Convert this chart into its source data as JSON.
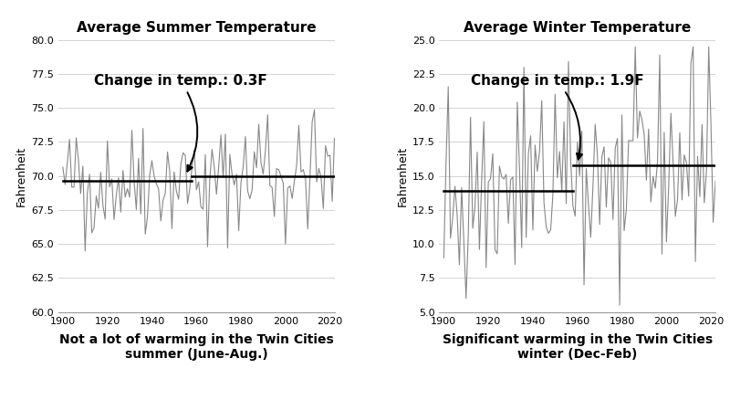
{
  "summer_title": "Average Summer Temperature",
  "winter_title": "Average Winter Temperature",
  "summer_xlabel": "Not a lot of warming in the Twin Cities\nsummer (June-Aug.)",
  "winter_xlabel": "Significant warming in the Twin Cities\nwinter (Dec-Feb)",
  "ylabel": "Fahrenheit",
  "summer_ylim": [
    60.0,
    80.0
  ],
  "winter_ylim": [
    5.0,
    25.0
  ],
  "summer_yticks": [
    60.0,
    62.5,
    65.0,
    67.5,
    70.0,
    72.5,
    75.0,
    77.5,
    80.0
  ],
  "winter_yticks": [
    5.0,
    7.5,
    10.0,
    12.5,
    15.0,
    17.5,
    20.0,
    22.5,
    25.0
  ],
  "xlim": [
    1898,
    2022
  ],
  "xticks": [
    1900,
    1920,
    1940,
    1960,
    1980,
    2000,
    2020
  ],
  "summer_mean1": 69.65,
  "summer_mean2": 69.95,
  "summer_split": 1958,
  "winter_mean1": 13.9,
  "winter_mean2": 15.8,
  "winter_split": 1958,
  "summer_annot_text": "Change in temp.: 0.3F",
  "winter_annot_text": "Change in temp.: 1.9F",
  "line_color": "#888888",
  "mean_line_color": "#000000",
  "bg_color": "#ffffff",
  "annot_fontsize": 11,
  "title_fontsize": 11,
  "xlabel_fontsize": 10,
  "ylabel_fontsize": 9,
  "tick_fontsize": 8
}
